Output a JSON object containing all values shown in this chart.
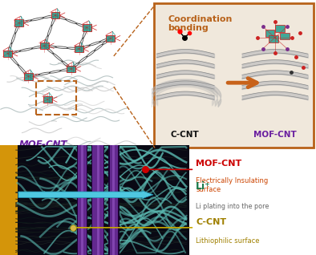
{
  "fig_width": 3.94,
  "fig_height": 3.18,
  "dpi": 100,
  "bg_color": "#ffffff",
  "top_left_bg": "#f0eeec",
  "top_right_bg": "#f0e8dc",
  "box_color": "#b8621a",
  "box_title": "Coordination\nbonding",
  "box_title_color": "#b8621a",
  "label_mof_cnt": "MOF-CNT",
  "label_mof_cnt_color": "#6a1fa0",
  "label_ccnt_inset": "C-CNT",
  "label_ccnt_color": "#111111",
  "label_mof_cnt2": "MOF-CNT",
  "label_mof_cnt2_color": "#6a1fa0",
  "arrow_color": "#c8621a",
  "purple_arrow_color": "#7b2d8b",
  "bot_image_bg": "#0a0a12",
  "gold_bar_color": "#d4950a",
  "teal_tube_color": "#5ab8b0",
  "purple_tube_color": "#7030a0",
  "cyan_arrow_color": "#4fc8e0",
  "arrow_label": "Li⁺",
  "arrow_label_color": "#1a7a4a",
  "label1": "MOF-CNT",
  "label1_color": "#cc0000",
  "label1_sub": "Electrically Insulating\nsurface",
  "label1_sub_color": "#cc4400",
  "label2": "Li plating into the pore",
  "label2_color": "#666666",
  "label3": "C-CNT",
  "label3_color": "#a08000",
  "label3_sub": "Lithiophilic surface",
  "label3_sub_color": "#a08000",
  "dot1_color": "#cc0000",
  "dot2_color": "#d4b84a",
  "line1_color": "#cc0000",
  "line2_color": "#c8a800"
}
